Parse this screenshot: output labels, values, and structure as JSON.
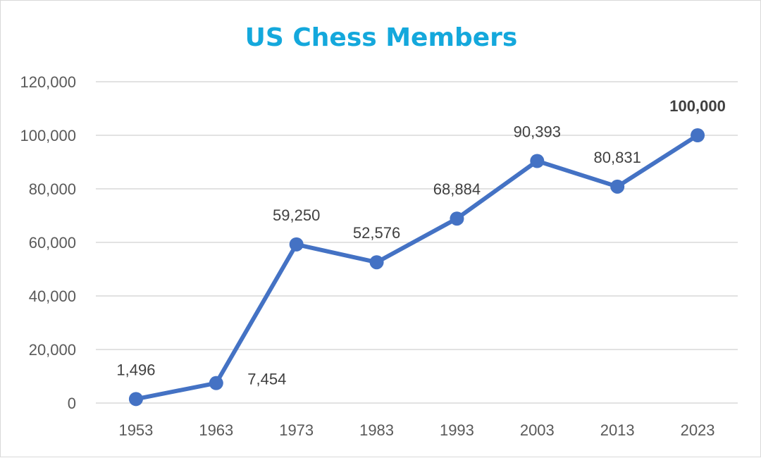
{
  "chart_data": {
    "type": "line",
    "title": "US Chess Members",
    "xlabel": "",
    "ylabel": "",
    "categories": [
      "1953",
      "1963",
      "1973",
      "1983",
      "1993",
      "2003",
      "2013",
      "2023"
    ],
    "series": [
      {
        "name": "US Chess Members",
        "values": [
          1496,
          7454,
          59250,
          52576,
          68884,
          90393,
          80831,
          100000
        ]
      }
    ],
    "data_labels": [
      "1,496",
      "7,454",
      "59,250",
      "52,576",
      "68,884",
      "90,393",
      "80,831",
      "100,000"
    ],
    "highlighted_label_index": 7,
    "ylim": [
      0,
      120000
    ],
    "y_ticks": [
      0,
      20000,
      40000,
      60000,
      80000,
      100000,
      120000
    ],
    "y_tick_labels": [
      "0",
      "20,000",
      "40,000",
      "60,000",
      "80,000",
      "100,000",
      "120,000"
    ],
    "grid": true,
    "legend": "none"
  },
  "colors": {
    "title": "#14a8dc",
    "line": "#4472c4",
    "marker": "#4472c4",
    "gridline": "#d9d9d9",
    "highlight_label": "#14a8dc"
  }
}
